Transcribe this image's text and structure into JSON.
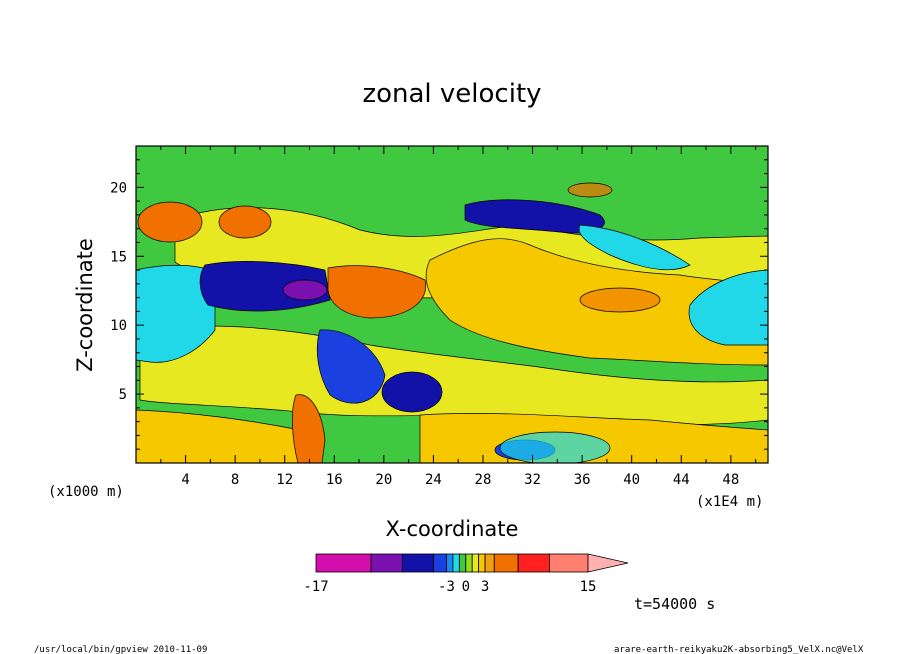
{
  "chart_data": {
    "type": "heatmap",
    "title": "zonal velocity",
    "xlabel": "X-coordinate",
    "ylabel": "Z-coordinate",
    "x_unit_left": "(x1000 m)",
    "x_unit_right": "(x1E4 m)",
    "xlim": [
      0,
      51
    ],
    "ylim": [
      0,
      23
    ],
    "x_ticks": [
      4,
      8,
      12,
      16,
      20,
      24,
      28,
      32,
      36,
      40,
      44,
      48
    ],
    "y_ticks": [
      5,
      10,
      15,
      20
    ],
    "colorbar": {
      "levels": [
        -17,
        -12,
        -8,
        -5,
        -3,
        -2,
        -1,
        0,
        1,
        2,
        3,
        5,
        8,
        11,
        15
      ],
      "labels": [
        {
          "value": -17,
          "text": "-17"
        },
        {
          "value": -3,
          "text": "-3"
        },
        {
          "value": 0,
          "text": "0"
        },
        {
          "value": 3,
          "text": "3"
        },
        {
          "value": 15,
          "text": "15"
        }
      ],
      "colors": [
        "#d40eac",
        "#7a10b0",
        "#1212a8",
        "#1a40e0",
        "#1a8af0",
        "#20d8e8",
        "#40c840",
        "#90e020",
        "#e8e820",
        "#f5c800",
        "#f0a010",
        "#f07000",
        "#ff2020",
        "#ff8070",
        "#ffb0b0"
      ]
    },
    "time_label": "t=54000 s"
  },
  "footer": {
    "left": "/usr/local/bin/gpview  2010-11-09",
    "right": "arare-earth-reikyaku2K-absorbing5_VelX.nc@VelX"
  }
}
